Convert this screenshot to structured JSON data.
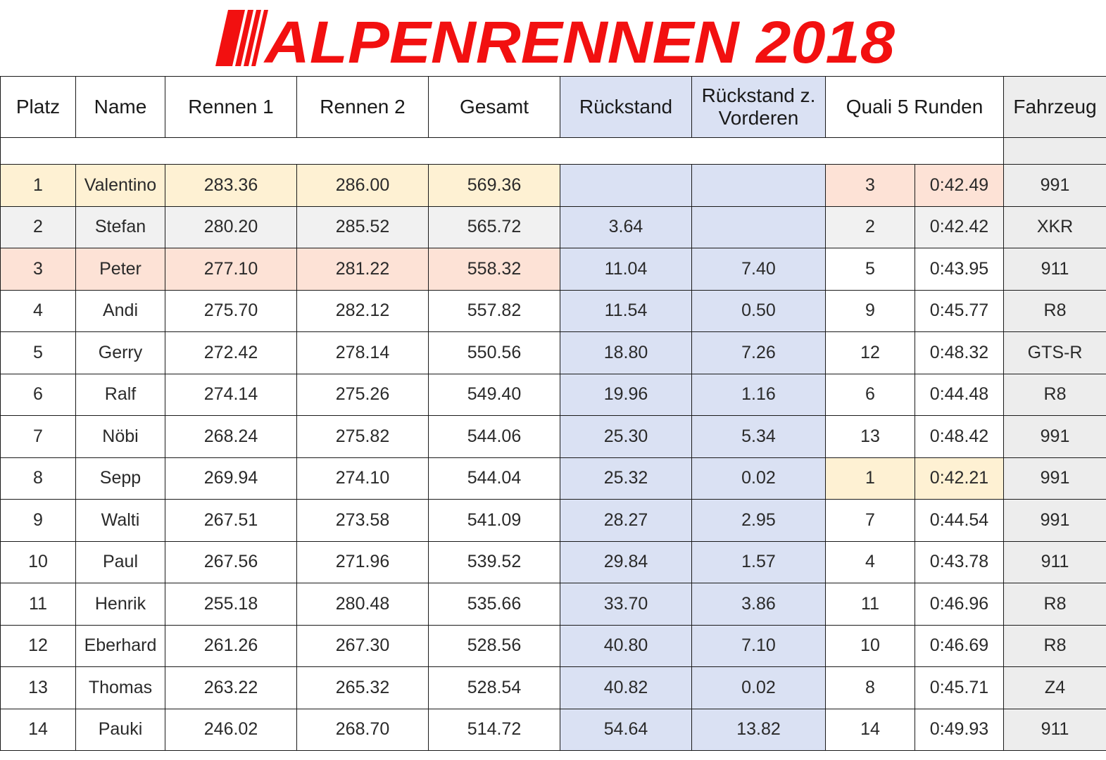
{
  "title": "ALPENRENNEN 2018",
  "colors": {
    "title_red": "#f21010",
    "blue_columns": "#dae1f3",
    "gray_column": "#ededed",
    "gold": "#fef1d3",
    "silver": "#f1f1f1",
    "bronze": "#fde2d6"
  },
  "headers": {
    "platz": "Platz",
    "name": "Name",
    "rennen1": "Rennen 1",
    "rennen2": "Rennen 2",
    "gesamt": "Gesamt",
    "rueckstand": "Rückstand",
    "rueckstand_vorderen": "Rückstand z. Vorderen",
    "quali": "Quali 5 Runden",
    "fahrzeug": "Fahrzeug"
  },
  "rows": [
    {
      "platz": "1",
      "name": "Valentino",
      "r1": "283.36",
      "r2": "286.00",
      "gesamt": "569.36",
      "rueck": "",
      "rueck_vorderen": "",
      "quali_pos": "3",
      "quali_time": "0:42.49",
      "fahrzeug": "991"
    },
    {
      "platz": "2",
      "name": "Stefan",
      "r1": "280.20",
      "r2": "285.52",
      "gesamt": "565.72",
      "rueck": "3.64",
      "rueck_vorderen": "",
      "quali_pos": "2",
      "quali_time": "0:42.42",
      "fahrzeug": "XKR"
    },
    {
      "platz": "3",
      "name": "Peter",
      "r1": "277.10",
      "r2": "281.22",
      "gesamt": "558.32",
      "rueck": "11.04",
      "rueck_vorderen": "7.40",
      "quali_pos": "5",
      "quali_time": "0:43.95",
      "fahrzeug": "911"
    },
    {
      "platz": "4",
      "name": "Andi",
      "r1": "275.70",
      "r2": "282.12",
      "gesamt": "557.82",
      "rueck": "11.54",
      "rueck_vorderen": "0.50",
      "quali_pos": "9",
      "quali_time": "0:45.77",
      "fahrzeug": "R8"
    },
    {
      "platz": "5",
      "name": "Gerry",
      "r1": "272.42",
      "r2": "278.14",
      "gesamt": "550.56",
      "rueck": "18.80",
      "rueck_vorderen": "7.26",
      "quali_pos": "12",
      "quali_time": "0:48.32",
      "fahrzeug": "GTS-R"
    },
    {
      "platz": "6",
      "name": "Ralf",
      "r1": "274.14",
      "r2": "275.26",
      "gesamt": "549.40",
      "rueck": "19.96",
      "rueck_vorderen": "1.16",
      "quali_pos": "6",
      "quali_time": "0:44.48",
      "fahrzeug": "R8"
    },
    {
      "platz": "7",
      "name": "Nöbi",
      "r1": "268.24",
      "r2": "275.82",
      "gesamt": "544.06",
      "rueck": "25.30",
      "rueck_vorderen": "5.34",
      "quali_pos": "13",
      "quali_time": "0:48.42",
      "fahrzeug": "991"
    },
    {
      "platz": "8",
      "name": "Sepp",
      "r1": "269.94",
      "r2": "274.10",
      "gesamt": "544.04",
      "rueck": "25.32",
      "rueck_vorderen": "0.02",
      "quali_pos": "1",
      "quali_time": "0:42.21",
      "fahrzeug": "991"
    },
    {
      "platz": "9",
      "name": "Walti",
      "r1": "267.51",
      "r2": "273.58",
      "gesamt": "541.09",
      "rueck": "28.27",
      "rueck_vorderen": "2.95",
      "quali_pos": "7",
      "quali_time": "0:44.54",
      "fahrzeug": "991"
    },
    {
      "platz": "10",
      "name": "Paul",
      "r1": "267.56",
      "r2": "271.96",
      "gesamt": "539.52",
      "rueck": "29.84",
      "rueck_vorderen": "1.57",
      "quali_pos": "4",
      "quali_time": "0:43.78",
      "fahrzeug": "911"
    },
    {
      "platz": "11",
      "name": "Henrik",
      "r1": "255.18",
      "r2": "280.48",
      "gesamt": "535.66",
      "rueck": "33.70",
      "rueck_vorderen": "3.86",
      "quali_pos": "11",
      "quali_time": "0:46.96",
      "fahrzeug": "R8"
    },
    {
      "platz": "12",
      "name": "Eberhard",
      "r1": "261.26",
      "r2": "267.30",
      "gesamt": "528.56",
      "rueck": "40.80",
      "rueck_vorderen": "7.10",
      "quali_pos": "10",
      "quali_time": "0:46.69",
      "fahrzeug": "R8"
    },
    {
      "platz": "13",
      "name": "Thomas",
      "r1": "263.22",
      "r2": "265.32",
      "gesamt": "528.54",
      "rueck": "40.82",
      "rueck_vorderen": "0.02",
      "quali_pos": "8",
      "quali_time": "0:45.71",
      "fahrzeug": "Z4"
    },
    {
      "platz": "14",
      "name": "Pauki",
      "r1": "246.02",
      "r2": "268.70",
      "gesamt": "514.72",
      "rueck": "54.64",
      "rueck_vorderen": "13.82",
      "quali_pos": "14",
      "quali_time": "0:49.93",
      "fahrzeug": "911"
    }
  ]
}
